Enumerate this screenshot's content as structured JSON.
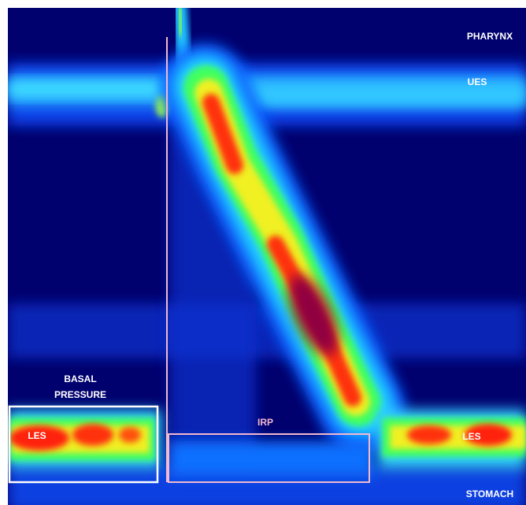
{
  "labels": {
    "pharynx": "PHARYNX",
    "ues": "UES",
    "basal_pressure": [
      "BASAL",
      "PRESSURE"
    ],
    "les_left": "LES",
    "irp": "IRP",
    "les_right": "LES",
    "stomach": "STOMACH"
  }
}
